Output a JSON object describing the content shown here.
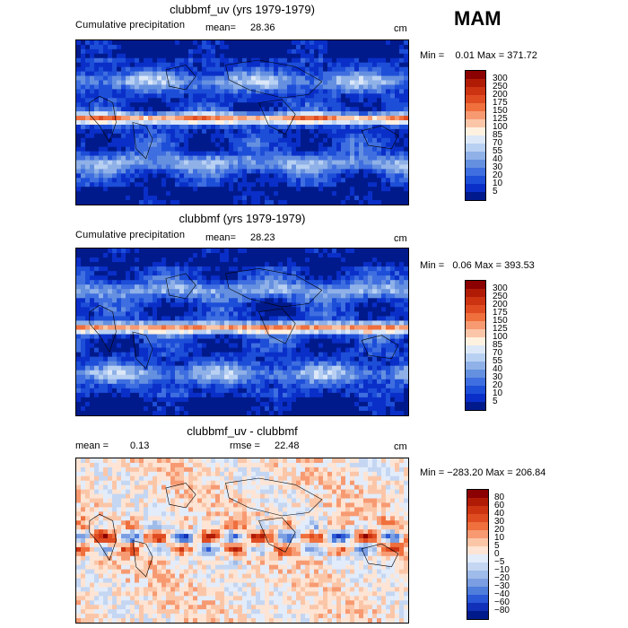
{
  "season": "MAM",
  "units": "cm",
  "panels": [
    {
      "title": "clubbmf_uv (yrs 1979-1979)",
      "subtitle": "Cumulative precipitation",
      "mean_label": "mean=",
      "mean_value": "28.36",
      "minmax": "Min =    0.01 Max = 371.72",
      "scale": "precip"
    },
    {
      "title": "clubbmf (yrs 1979-1979)",
      "subtitle": "Cumulative precipitation",
      "mean_label": "mean=",
      "mean_value": "28.23",
      "minmax": "Min =   0.06 Max = 393.53",
      "scale": "precip"
    },
    {
      "title": "clubbmf_uv - clubbmf",
      "mean_label": "mean =",
      "mean_value": "0.13",
      "rmse_label": "rmse =",
      "rmse_value": "22.48",
      "minmax": "Min = −283.20 Max = 206.84",
      "scale": "diff"
    }
  ],
  "chart_data": [
    {
      "type": "heatmap",
      "title": "clubbmf_uv (yrs 1979-1979)",
      "subtitle": "Cumulative precipitation",
      "units": "cm",
      "mean": 28.36,
      "min": 0.01,
      "max": 371.72,
      "colorbar_levels": [
        5,
        10,
        20,
        30,
        40,
        55,
        70,
        85,
        100,
        125,
        150,
        175,
        200,
        250,
        300
      ]
    },
    {
      "type": "heatmap",
      "title": "clubbmf (yrs 1979-1979)",
      "subtitle": "Cumulative precipitation",
      "units": "cm",
      "mean": 28.23,
      "min": 0.06,
      "max": 393.53,
      "colorbar_levels": [
        5,
        10,
        20,
        30,
        40,
        55,
        70,
        85,
        100,
        125,
        150,
        175,
        200,
        250,
        300
      ]
    },
    {
      "type": "heatmap",
      "title": "clubbmf_uv - clubbmf",
      "units": "cm",
      "mean": 0.13,
      "rmse": 22.48,
      "min": -283.2,
      "max": 206.84,
      "colorbar_levels": [
        -80,
        -60,
        -40,
        -30,
        -20,
        -10,
        -5,
        0,
        5,
        10,
        20,
        30,
        40,
        60,
        80
      ]
    }
  ],
  "colorbars": {
    "precip": {
      "labels": [
        "300",
        "250",
        "200",
        "175",
        "150",
        "125",
        "100",
        "85",
        "70",
        "55",
        "40",
        "30",
        "20",
        "10",
        "5"
      ],
      "colors": [
        "#8b0000",
        "#b01b06",
        "#cc3311",
        "#e04c22",
        "#ef6f3d",
        "#f79a72",
        "#fbc6a8",
        "#fff1e0",
        "#dce8f8",
        "#b8d0f2",
        "#8fb1e8",
        "#6590e0",
        "#3f6ee0",
        "#1d4ed8",
        "#0a2fc8",
        "#001a8c"
      ]
    },
    "diff": {
      "labels": [
        "80",
        "60",
        "40",
        "30",
        "20",
        "10",
        "5",
        "0",
        "−5",
        "−10",
        "−20",
        "−30",
        "−40",
        "−60",
        "−80"
      ],
      "colors": [
        "#8b0000",
        "#b01b06",
        "#cc3311",
        "#e04c22",
        "#ef6f3d",
        "#f79a72",
        "#fbc6a8",
        "#fde4d4",
        "#e3ecfa",
        "#c4d6f2",
        "#9fbbe9",
        "#7b9ee2",
        "#4f7ddc",
        "#2b58d6",
        "#1131b8",
        "#001a8c"
      ]
    }
  }
}
